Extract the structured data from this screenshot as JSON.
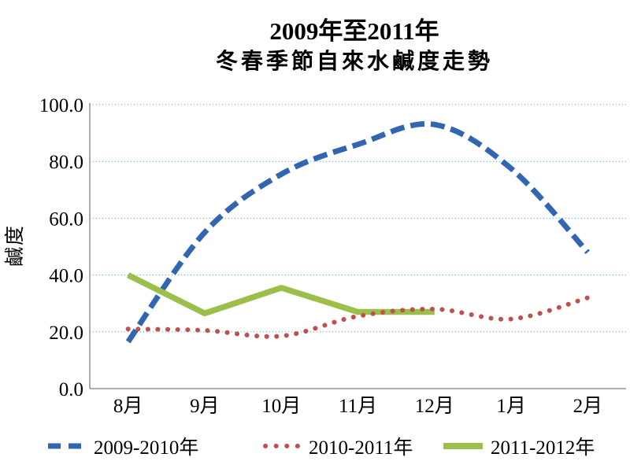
{
  "chart_data": {
    "type": "line",
    "title": "2009年至2011年 冬春季節自來水鹹度走勢",
    "title_lines": [
      "2009年至2011年",
      "冬春季節自來水鹹度走勢"
    ],
    "ylabel": "鹹度",
    "xlabel": "",
    "categories": [
      "8月",
      "9月",
      "10月",
      "11月",
      "12月",
      "1月",
      "2月"
    ],
    "y_ticks": [
      "100.0",
      "80.0",
      "60.0",
      "40.0",
      "20.0",
      "0.0"
    ],
    "ylim": [
      0,
      100
    ],
    "grid": "horizontal dotted gridlines every 20",
    "legend_position": "bottom",
    "axis_color": "#808080",
    "grid_color": "#5d9cbc",
    "text_color": "#000000",
    "series": [
      {
        "name": "2009-2010年",
        "color": "#3366b0",
        "style": "dashed",
        "values": [
          16.5,
          55,
          75.5,
          86,
          93,
          77.5,
          48
        ]
      },
      {
        "name": "2010-2011年",
        "color": "#c0504d",
        "style": "dotted",
        "values": [
          21,
          20.5,
          18.5,
          25.5,
          28,
          24.5,
          32
        ]
      },
      {
        "name": "2011-2012年",
        "color": "#9bbf4a",
        "style": "solid",
        "values": [
          40,
          26.5,
          35.5,
          27,
          27,
          null,
          null
        ]
      }
    ]
  }
}
